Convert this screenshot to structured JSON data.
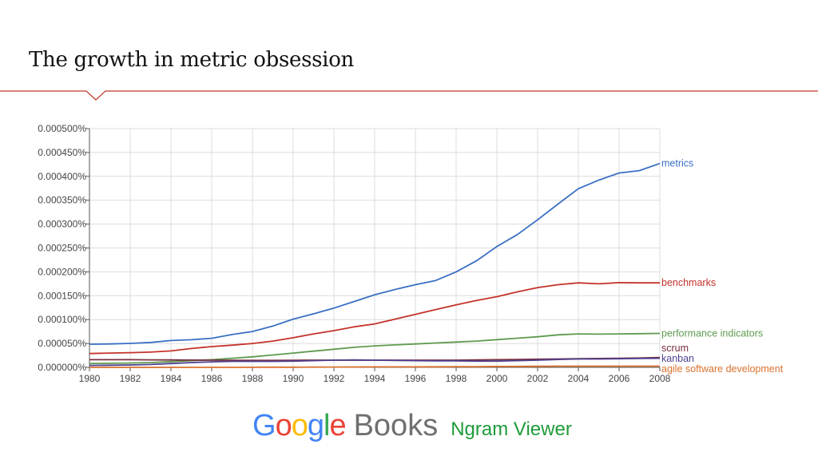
{
  "slide": {
    "title": "The growth in metric obsession",
    "accent_color": "#c0392b"
  },
  "footer": {
    "logo_letters": [
      "G",
      "o",
      "o",
      "g",
      "l",
      "e"
    ],
    "logo_colors": [
      "#4285f4",
      "#ea4335",
      "#fbbc05",
      "#4285f4",
      "#34a853",
      "#ea4335"
    ],
    "books_text": "Books",
    "viewer_text": "Ngram Viewer"
  },
  "chart_data": {
    "type": "line",
    "title": "",
    "xlabel": "",
    "ylabel": "",
    "xlim": [
      1980,
      2008
    ],
    "ylim": [
      0,
      0.0005
    ],
    "grid": true,
    "x_ticks": [
      "1980",
      "1982",
      "1984",
      "1986",
      "1988",
      "1990",
      "1992",
      "1994",
      "1996",
      "1998",
      "2000",
      "2002",
      "2004",
      "2006",
      "2008"
    ],
    "y_ticks": [
      "0.000000%",
      "0.000050%",
      "0.000100%",
      "0.000150%",
      "0.000200%",
      "0.000250%",
      "0.000300%",
      "0.000350%",
      "0.000400%",
      "0.000450%",
      "0.000500%"
    ],
    "x": [
      1980,
      1981,
      1982,
      1983,
      1984,
      1985,
      1986,
      1987,
      1988,
      1989,
      1990,
      1991,
      1992,
      1993,
      1994,
      1995,
      1996,
      1997,
      1998,
      1999,
      2000,
      2001,
      2002,
      2003,
      2004,
      2005,
      2006,
      2007,
      2008
    ],
    "series": [
      {
        "name": "metrics",
        "color": "#3a6fc4",
        "values": [
          4.85e-05,
          4.9e-05,
          5.02e-05,
          5.22e-05,
          5.62e-05,
          5.78e-05,
          6.08e-05,
          6.88e-05,
          7.5e-05,
          8.65e-05,
          0.000101,
          0.000112,
          0.000124,
          0.000138,
          0.000152,
          0.000163,
          0.000173,
          0.000182,
          0.0002,
          0.000223,
          0.000253,
          0.000278,
          0.000309,
          0.000342,
          0.000374,
          0.000392,
          0.000407,
          0.000412,
          0.000427
        ]
      },
      {
        "name": "benchmarks",
        "color": "#c4332b",
        "values": [
          2.9e-05,
          3e-05,
          3.08e-05,
          3.2e-05,
          3.45e-05,
          3.95e-05,
          4.35e-05,
          4.65e-05,
          5e-05,
          5.5e-05,
          6.2e-05,
          7e-05,
          7.7e-05,
          8.5e-05,
          9.1e-05,
          0.000101,
          0.000111,
          0.000121,
          0.000131,
          0.00014,
          0.000148,
          0.000158,
          0.000167,
          0.000173,
          0.000177,
          0.000175,
          0.0001775,
          0.000177,
          0.000177
        ]
      },
      {
        "name": "performance indicators",
        "color": "#5e9a4e",
        "values": [
          8e-06,
          8.5e-06,
          9e-06,
          1e-05,
          1.2e-05,
          1.4e-05,
          1.6e-05,
          1.9e-05,
          2.2e-05,
          2.6e-05,
          3e-05,
          3.4e-05,
          3.8e-05,
          4.2e-05,
          4.5e-05,
          4.7e-05,
          4.9e-05,
          5.1e-05,
          5.3e-05,
          5.5e-05,
          5.8e-05,
          6.1e-05,
          6.4e-05,
          6.8e-05,
          7e-05,
          6.95e-05,
          7e-05,
          7.05e-05,
          7.1e-05
        ]
      },
      {
        "name": "scrum",
        "color": "#7a2e3e",
        "values": [
          1.6e-05,
          1.6e-05,
          1.6e-05,
          1.58e-05,
          1.55e-05,
          1.52e-05,
          1.5e-05,
          1.48e-05,
          1.46e-05,
          1.46e-05,
          1.48e-05,
          1.5e-05,
          1.5e-05,
          1.5e-05,
          1.5e-05,
          1.5e-05,
          1.5e-05,
          1.5e-05,
          1.5e-05,
          1.55e-05,
          1.6e-05,
          1.65e-05,
          1.7e-05,
          1.75e-05,
          1.8e-05,
          1.85e-05,
          1.9e-05,
          1.95e-05,
          2.05e-05
        ]
      },
      {
        "name": "kanban",
        "color": "#4e3f8f",
        "values": [
          4e-06,
          4.5e-06,
          5e-06,
          6e-06,
          8e-06,
          1e-05,
          1.15e-05,
          1.25e-05,
          1.25e-05,
          1.25e-05,
          1.3e-05,
          1.4e-05,
          1.5e-05,
          1.55e-05,
          1.5e-05,
          1.45e-05,
          1.4e-05,
          1.35e-05,
          1.35e-05,
          1.3e-05,
          1.3e-05,
          1.4e-05,
          1.5e-05,
          1.65e-05,
          1.75e-05,
          1.75e-05,
          1.8e-05,
          1.85e-05,
          1.9e-05
        ]
      },
      {
        "name": "agile software development",
        "color": "#d9722e",
        "values": [
          0.0,
          0.0,
          0.0,
          0.0,
          0.0,
          0.0,
          0.0,
          0.0,
          2e-07,
          3e-07,
          4e-07,
          5e-07,
          6e-07,
          8e-07,
          1e-06,
          1e-06,
          1e-06,
          1.2e-06,
          1.5e-06,
          1.5e-06,
          1.8e-06,
          2e-06,
          2.2e-06,
          2.5e-06,
          2.5e-06,
          2.5e-06,
          2.5e-06,
          2.5e-06,
          2.5e-06
        ]
      }
    ]
  }
}
